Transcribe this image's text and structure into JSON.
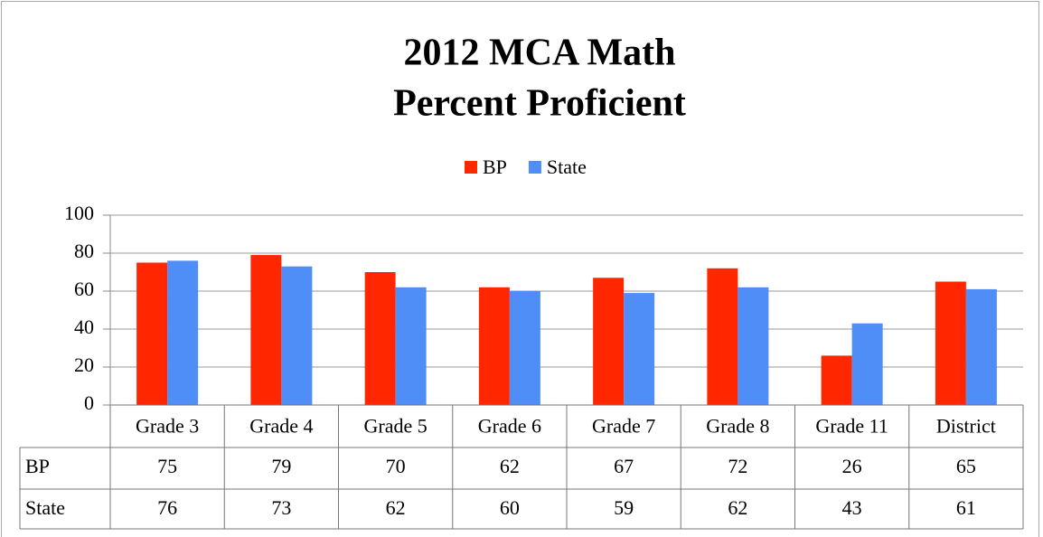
{
  "chart_data": {
    "type": "bar",
    "title": [
      "2012 MCA Math",
      "Percent Proficient"
    ],
    "categories": [
      "Grade 3",
      "Grade 4",
      "Grade 5",
      "Grade 6",
      "Grade 7",
      "Grade 8",
      "Grade 11",
      "District"
    ],
    "series": [
      {
        "name": "BP",
        "color": "#ff2600",
        "values": [
          75,
          79,
          70,
          62,
          67,
          72,
          26,
          65
        ]
      },
      {
        "name": "State",
        "color": "#4f8ef7",
        "values": [
          76,
          73,
          62,
          60,
          59,
          62,
          43,
          61
        ]
      }
    ],
    "ylim": [
      0,
      100
    ],
    "yticks": [
      0,
      20,
      40,
      60,
      80,
      100
    ],
    "grid": true,
    "legend": "top"
  }
}
